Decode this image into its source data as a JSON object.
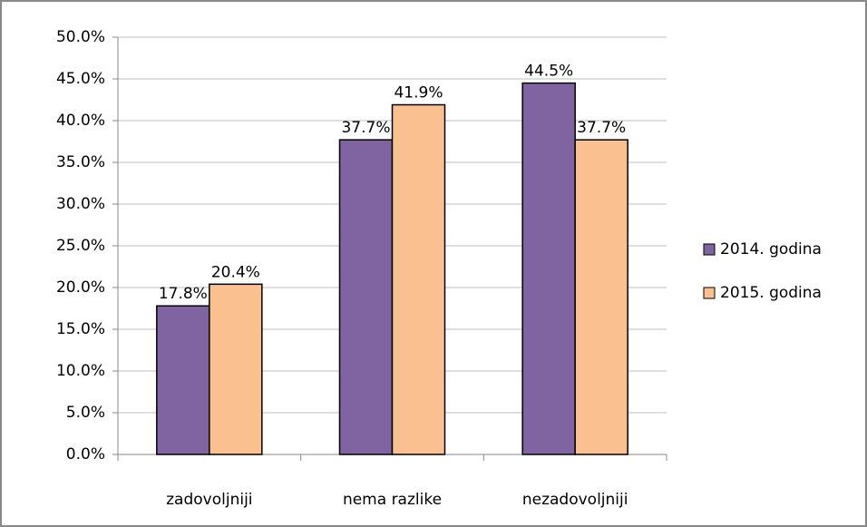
{
  "chart_data": {
    "type": "bar",
    "categories": [
      "zadovoljniji",
      "nema razlike",
      "nezadovoljniji"
    ],
    "series": [
      {
        "name": "2014. godina",
        "color": "#8064a2",
        "values": [
          17.8,
          37.7,
          44.5
        ],
        "value_labels": [
          "17.8%",
          "37.7%",
          "44.5%"
        ]
      },
      {
        "name": "2015. godina",
        "color": "#fac090",
        "values": [
          20.4,
          41.9,
          37.7
        ],
        "value_labels": [
          "20.4%",
          "41.9%",
          "37.7%"
        ]
      }
    ],
    "ylim": [
      0,
      50
    ],
    "yticks": [
      {
        "value": 0,
        "label": "0.0%"
      },
      {
        "value": 5,
        "label": "5.0%"
      },
      {
        "value": 10,
        "label": "10.0%"
      },
      {
        "value": 15,
        "label": "15.0%"
      },
      {
        "value": 20,
        "label": "20.0%"
      },
      {
        "value": 25,
        "label": "25.0%"
      },
      {
        "value": 30,
        "label": "30.0%"
      },
      {
        "value": 35,
        "label": "35.0%"
      },
      {
        "value": 40,
        "label": "40.0%"
      },
      {
        "value": 45,
        "label": "45.0%"
      },
      {
        "value": 50,
        "label": "50.0%"
      }
    ],
    "grid": true,
    "legend": "right"
  }
}
